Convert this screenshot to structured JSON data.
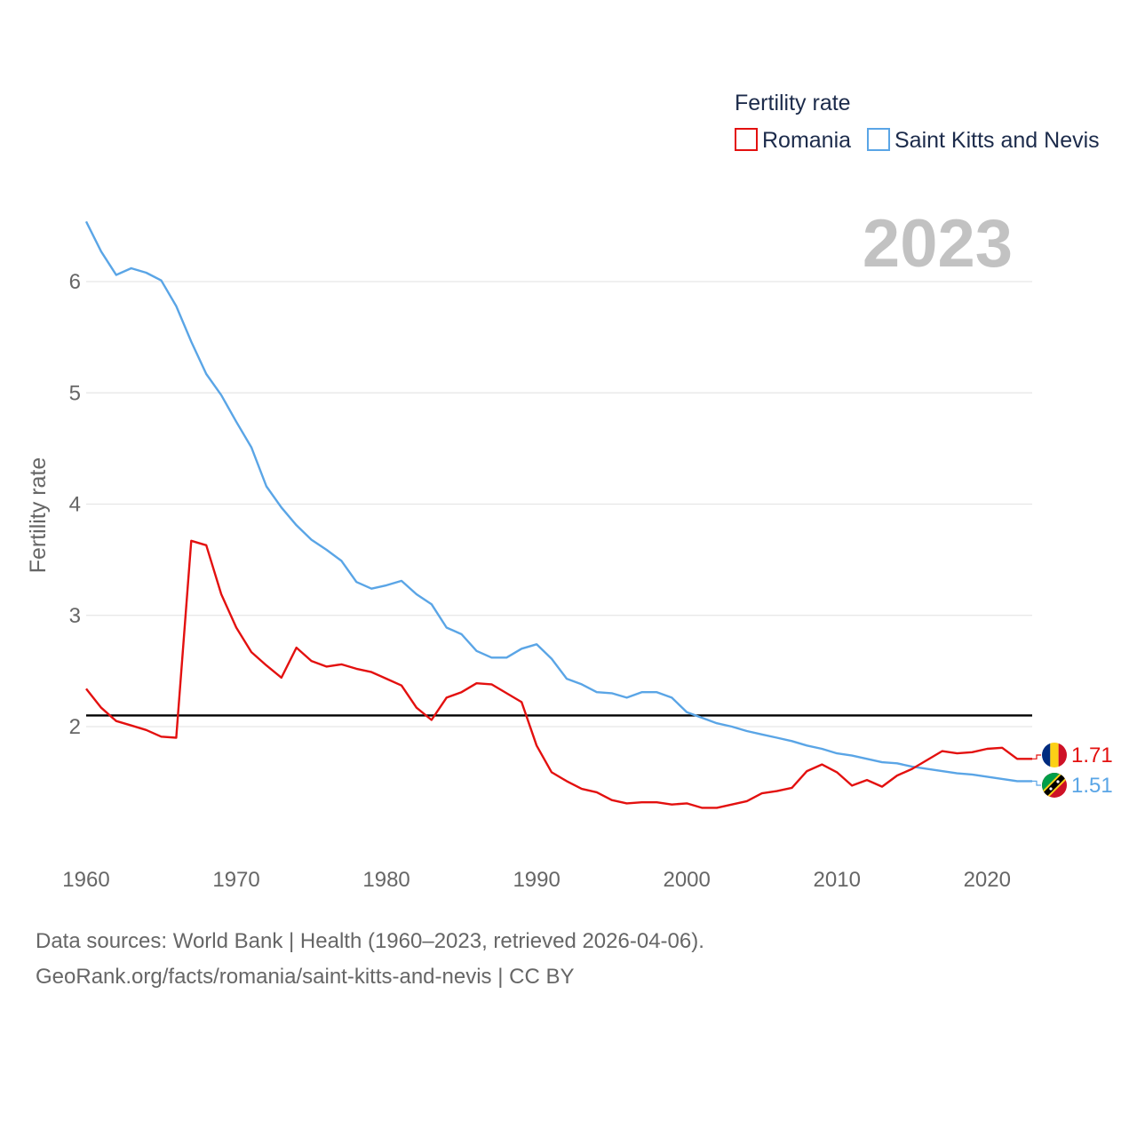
{
  "chart_data": {
    "type": "line",
    "title": "",
    "xlabel": "",
    "ylabel": "Fertility rate",
    "xlim": [
      1960,
      2023
    ],
    "ylim": [
      1.0,
      6.6
    ],
    "yticks": [
      2,
      3,
      4,
      5,
      6
    ],
    "xticks": [
      1960,
      1970,
      1980,
      1990,
      2000,
      2010,
      2020
    ],
    "grid": true,
    "legend": {
      "title": "Fertility rate",
      "position": "top-right"
    },
    "year_label": "2023",
    "reference_line": {
      "y": 2.1,
      "color": "#000000"
    },
    "x": [
      1960,
      1961,
      1962,
      1963,
      1964,
      1965,
      1966,
      1967,
      1968,
      1969,
      1970,
      1971,
      1972,
      1973,
      1974,
      1975,
      1976,
      1977,
      1978,
      1979,
      1980,
      1981,
      1982,
      1983,
      1984,
      1985,
      1986,
      1987,
      1988,
      1989,
      1990,
      1991,
      1992,
      1993,
      1994,
      1995,
      1996,
      1997,
      1998,
      1999,
      2000,
      2001,
      2002,
      2003,
      2004,
      2005,
      2006,
      2007,
      2008,
      2009,
      2010,
      2011,
      2012,
      2013,
      2014,
      2015,
      2016,
      2017,
      2018,
      2019,
      2020,
      2021,
      2022,
      2023
    ],
    "series": [
      {
        "name": "Romania",
        "color": "#e3100f",
        "end_label": "1.71",
        "flag": "romania-flag",
        "values": [
          2.34,
          2.17,
          2.05,
          2.01,
          1.97,
          1.91,
          1.9,
          3.67,
          3.63,
          3.19,
          2.89,
          2.67,
          2.55,
          2.44,
          2.71,
          2.59,
          2.54,
          2.56,
          2.52,
          2.49,
          2.43,
          2.37,
          2.17,
          2.06,
          2.26,
          2.31,
          2.39,
          2.38,
          2.3,
          2.22,
          1.83,
          1.59,
          1.51,
          1.44,
          1.41,
          1.34,
          1.31,
          1.32,
          1.32,
          1.3,
          1.31,
          1.27,
          1.27,
          1.3,
          1.33,
          1.4,
          1.42,
          1.45,
          1.6,
          1.66,
          1.59,
          1.47,
          1.52,
          1.46,
          1.56,
          1.62,
          1.7,
          1.78,
          1.76,
          1.77,
          1.8,
          1.81,
          1.71,
          1.71
        ]
      },
      {
        "name": "Saint Kitts and Nevis",
        "color": "#5aa5e6",
        "end_label": "1.51",
        "flag": "saint-kitts-and-nevis-flag",
        "values": [
          6.54,
          6.27,
          6.06,
          6.12,
          6.08,
          6.01,
          5.78,
          5.46,
          5.17,
          4.98,
          4.74,
          4.51,
          4.16,
          3.97,
          3.81,
          3.68,
          3.59,
          3.49,
          3.3,
          3.24,
          3.27,
          3.31,
          3.19,
          3.1,
          2.89,
          2.83,
          2.68,
          2.62,
          2.62,
          2.7,
          2.74,
          2.61,
          2.43,
          2.38,
          2.31,
          2.3,
          2.26,
          2.31,
          2.31,
          2.26,
          2.13,
          2.08,
          2.03,
          2.0,
          1.96,
          1.93,
          1.9,
          1.87,
          1.83,
          1.8,
          1.76,
          1.74,
          1.71,
          1.68,
          1.67,
          1.64,
          1.62,
          1.6,
          1.58,
          1.57,
          1.55,
          1.53,
          1.51,
          1.51
        ]
      }
    ]
  },
  "footer": {
    "line1": "Data sources: World Bank | Health (1960–2023, retrieved 2026-04-06).",
    "line2": "GeoRank.org/facts/romania/saint-kitts-and-nevis | CC BY"
  }
}
